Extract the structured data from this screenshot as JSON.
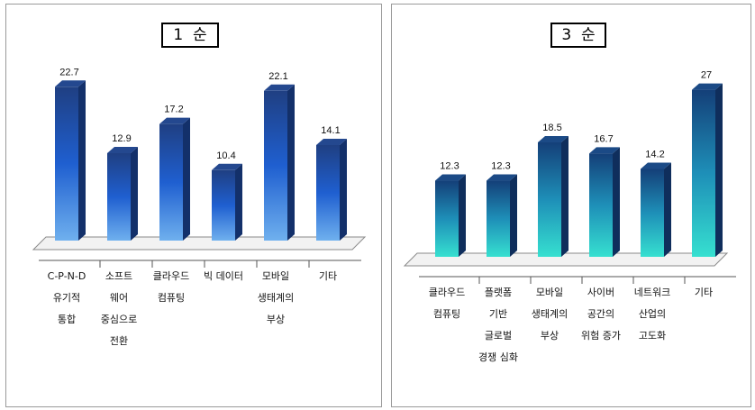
{
  "chart_data": [
    {
      "type": "bar",
      "title": "1  순",
      "categories": [
        [
          "C-P-N-D",
          "유기적",
          "통합"
        ],
        [
          "소프트",
          "웨어",
          "중심으로",
          "전환"
        ],
        [
          "클라우드",
          "컴퓨팅"
        ],
        [
          "빅 데이터"
        ],
        [
          "모바일",
          "생태계의",
          "부상"
        ],
        [
          "기타"
        ]
      ],
      "values": [
        22.7,
        12.9,
        17.2,
        10.4,
        22.1,
        14.1
      ],
      "value_labels": [
        "22.7",
        "12.9",
        "17.2",
        "10.4",
        "22.1",
        "14.1"
      ],
      "ylim": [
        0,
        25
      ],
      "grid": false,
      "colors": {
        "top": "#1f3f82",
        "mid": "#1f5fd0",
        "bottom": "#6fb0ee",
        "side": "#13306a",
        "cap": "#24488f"
      }
    },
    {
      "type": "bar",
      "title": "3  순",
      "categories": [
        [
          "클라우드",
          "컴퓨팅"
        ],
        [
          "플랫폼",
          "기반",
          "글로벌",
          "경쟁 심화"
        ],
        [
          "모바일",
          "생태계의",
          "부상"
        ],
        [
          "사이버",
          "공간의",
          "위험 증가"
        ],
        [
          "네트워크",
          "산업의",
          "고도화"
        ],
        [
          "기타"
        ]
      ],
      "values": [
        12.3,
        12.3,
        18.5,
        16.7,
        14.2,
        27
      ],
      "value_labels": [
        "12.3",
        "12.3",
        "18.5",
        "16.7",
        "14.2",
        "27"
      ],
      "ylim": [
        0,
        30
      ],
      "grid": false,
      "colors": {
        "top": "#143f78",
        "mid": "#1e8fb8",
        "bottom": "#36e0d0",
        "side": "#0f2e5c",
        "cap": "#1b4a86"
      }
    }
  ]
}
